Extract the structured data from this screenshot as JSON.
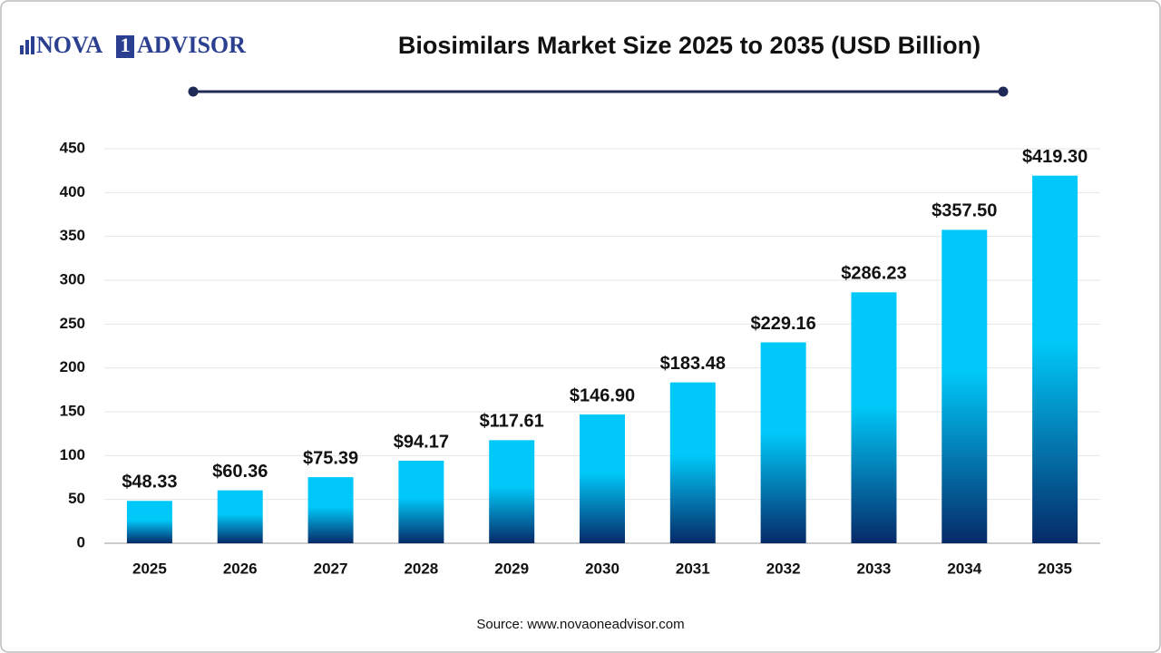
{
  "logo": {
    "left": "NOVA",
    "mark": "1",
    "right": "ADVISOR"
  },
  "source": "Source: www.novaoneadvisor.com",
  "chart_data": {
    "type": "bar",
    "title": "Biosimilars Market Size 2025 to 2035 (USD Billion)",
    "categories": [
      "2025",
      "2026",
      "2027",
      "2028",
      "2029",
      "2030",
      "2031",
      "2032",
      "2033",
      "2034",
      "2035"
    ],
    "values": [
      48.33,
      60.36,
      75.39,
      94.17,
      117.61,
      146.9,
      183.48,
      229.16,
      286.23,
      357.5,
      419.3
    ],
    "value_labels": [
      "$48.33",
      "$60.36",
      "$75.39",
      "$94.17",
      "$117.61",
      "$146.90",
      "$183.48",
      "$229.16",
      "$286.23",
      "$357.50",
      "$419.30"
    ],
    "colors": [
      "#00c9f9",
      "#062a68"
    ],
    "ylim": [
      0,
      450
    ],
    "yticks": [
      0,
      50,
      100,
      150,
      200,
      250,
      300,
      350,
      400,
      450
    ],
    "grid": true
  }
}
